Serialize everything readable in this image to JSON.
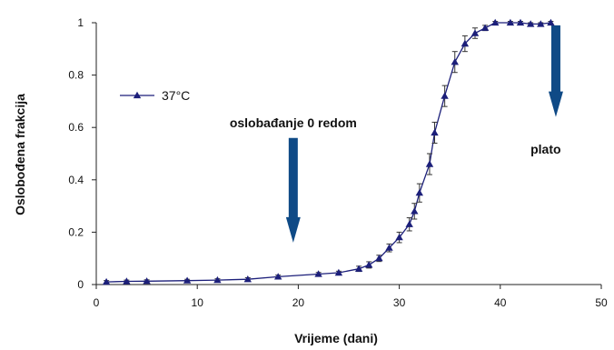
{
  "chart_data": {
    "type": "line",
    "title": "",
    "xlabel": "Vrijeme (dani)",
    "ylabel": "Oslobođena frakcija",
    "xlim": [
      0,
      50
    ],
    "ylim": [
      0,
      1
    ],
    "xticks": [
      "0",
      "10",
      "20",
      "30",
      "40",
      "50"
    ],
    "yticks": [
      "0",
      "0.2",
      "0.4",
      "0.6",
      "0.8",
      "1"
    ],
    "grid": false,
    "legend_position": "top-left",
    "series": [
      {
        "name": "37°C",
        "color": "#1c1f7a",
        "marker": "triangle",
        "points": [
          {
            "x": 1,
            "y": 0.01,
            "err": 0.005
          },
          {
            "x": 3,
            "y": 0.012,
            "err": 0.005
          },
          {
            "x": 5,
            "y": 0.013,
            "err": 0.005
          },
          {
            "x": 9,
            "y": 0.015,
            "err": 0.005
          },
          {
            "x": 12,
            "y": 0.017,
            "err": 0.005
          },
          {
            "x": 15,
            "y": 0.02,
            "err": 0.006
          },
          {
            "x": 18,
            "y": 0.03,
            "err": 0.006
          },
          {
            "x": 22,
            "y": 0.04,
            "err": 0.006
          },
          {
            "x": 24,
            "y": 0.045,
            "err": 0.006
          },
          {
            "x": 26,
            "y": 0.06,
            "err": 0.01
          },
          {
            "x": 27,
            "y": 0.075,
            "err": 0.012
          },
          {
            "x": 28,
            "y": 0.1,
            "err": 0.012
          },
          {
            "x": 29,
            "y": 0.14,
            "err": 0.015
          },
          {
            "x": 30,
            "y": 0.18,
            "err": 0.02
          },
          {
            "x": 31,
            "y": 0.23,
            "err": 0.025
          },
          {
            "x": 31.5,
            "y": 0.28,
            "err": 0.03
          },
          {
            "x": 32,
            "y": 0.35,
            "err": 0.035
          },
          {
            "x": 33,
            "y": 0.46,
            "err": 0.04
          },
          {
            "x": 33.5,
            "y": 0.58,
            "err": 0.04
          },
          {
            "x": 34.5,
            "y": 0.72,
            "err": 0.04
          },
          {
            "x": 35.5,
            "y": 0.85,
            "err": 0.04
          },
          {
            "x": 36.5,
            "y": 0.92,
            "err": 0.03
          },
          {
            "x": 37.5,
            "y": 0.96,
            "err": 0.02
          },
          {
            "x": 38.5,
            "y": 0.98,
            "err": 0.01
          },
          {
            "x": 39.5,
            "y": 1.0,
            "err": 0.005
          },
          {
            "x": 41,
            "y": 1.0,
            "err": 0.005
          },
          {
            "x": 42,
            "y": 1.0,
            "err": 0.005
          },
          {
            "x": 43,
            "y": 0.995,
            "err": 0.005
          },
          {
            "x": 44,
            "y": 0.995,
            "err": 0.005
          },
          {
            "x": 45,
            "y": 1.0,
            "err": 0.005
          }
        ]
      }
    ],
    "annotations": [
      {
        "text": "oslobađanje 0 redom",
        "arrow_x": 19.5,
        "arrow_y_top": 0.56,
        "arrow_y_tip": 0.16,
        "text_x": 19.5,
        "text_y": 0.6
      },
      {
        "text": "plato",
        "arrow_x": 45.5,
        "arrow_y_top": 0.99,
        "arrow_y_tip": 0.64,
        "text_x": 44.5,
        "text_y": 0.5
      }
    ],
    "arrow_color": "#0f4a86"
  }
}
